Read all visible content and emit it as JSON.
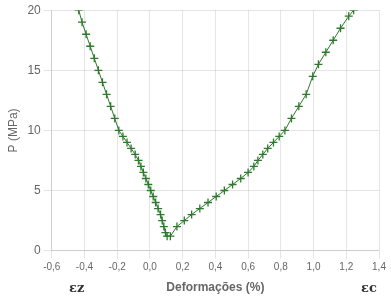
{
  "chart_data": {
    "type": "line",
    "title": "",
    "xlabel": "Deformações (%)",
    "ylabel": "P (MPa)",
    "annotations": [
      {
        "text": "εz"
      },
      {
        "text": "εc"
      }
    ],
    "series": [
      {
        "color": "#2d7a2d",
        "marker": "plus",
        "x": [
          -0.435,
          -0.415,
          -0.39,
          -0.365,
          -0.34,
          -0.315,
          -0.29,
          -0.265,
          -0.24,
          -0.215,
          -0.19,
          -0.165,
          -0.14,
          -0.115,
          -0.09,
          -0.07,
          -0.055,
          -0.04,
          -0.025,
          -0.01,
          0.005,
          0.02,
          0.035,
          0.05,
          0.065,
          0.075,
          0.085,
          0.095,
          0.105
        ],
        "values": [
          20.0,
          19.0,
          18.0,
          17.0,
          16.0,
          15.0,
          14.0,
          13.0,
          12.0,
          11.0,
          10.0,
          9.5,
          9.0,
          8.5,
          8.0,
          7.5,
          7.0,
          6.5,
          6.0,
          5.5,
          5.0,
          4.5,
          4.0,
          3.5,
          3.0,
          2.5,
          2.0,
          1.5,
          1.2
        ]
      },
      {
        "color": "#2d7a2d",
        "marker": "plus",
        "x": [
          0.125,
          0.165,
          0.21,
          0.255,
          0.305,
          0.355,
          0.405,
          0.455,
          0.505,
          0.555,
          0.6,
          0.635,
          0.66,
          0.69,
          0.72,
          0.755,
          0.79,
          0.825,
          0.865,
          0.91,
          0.955,
          0.995,
          1.03,
          1.075,
          1.12,
          1.165,
          1.215,
          1.245
        ],
        "values": [
          1.2,
          2.0,
          2.5,
          3.0,
          3.5,
          4.0,
          4.5,
          5.0,
          5.5,
          6.0,
          6.5,
          7.0,
          7.5,
          8.0,
          8.5,
          9.0,
          9.5,
          10.0,
          11.0,
          12.0,
          13.0,
          14.5,
          15.5,
          16.5,
          17.5,
          18.5,
          19.5,
          20.0
        ]
      }
    ],
    "xlim": [
      -0.6,
      1.4
    ],
    "ylim": [
      0,
      20
    ],
    "xticks": [
      {
        "value": -0.6,
        "label": "-0,6"
      },
      {
        "value": -0.4,
        "label": "-0,4"
      },
      {
        "value": -0.2,
        "label": "-0,2"
      },
      {
        "value": 0.0,
        "label": "0,0"
      },
      {
        "value": 0.2,
        "label": "0,2"
      },
      {
        "value": 0.4,
        "label": "0,4"
      },
      {
        "value": 0.6,
        "label": "0,6"
      },
      {
        "value": 0.8,
        "label": "0,8"
      },
      {
        "value": 1.0,
        "label": "1,0"
      },
      {
        "value": 1.2,
        "label": "1,2"
      },
      {
        "value": 1.4,
        "label": "1,4"
      }
    ],
    "yticks": [
      0,
      5,
      10,
      15,
      20
    ],
    "grid": true
  }
}
